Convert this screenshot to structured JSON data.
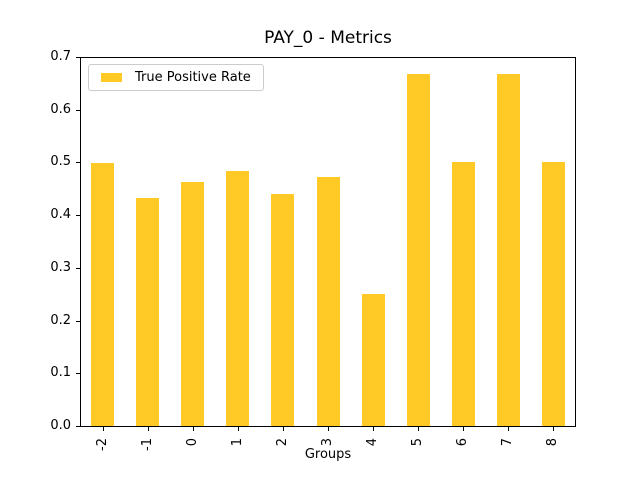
{
  "chart_data": {
    "type": "bar",
    "title": "PAY_0 - Metrics",
    "xlabel": "Groups",
    "ylabel": "",
    "categories": [
      "-2",
      "-1",
      "0",
      "1",
      "2",
      "3",
      "4",
      "5",
      "6",
      "7",
      "8"
    ],
    "series": [
      {
        "name": "True Positive Rate",
        "values": [
          0.498,
          0.432,
          0.463,
          0.483,
          0.441,
          0.473,
          0.25,
          0.667,
          0.5,
          0.667,
          0.5
        ]
      }
    ],
    "ylim": [
      0.0,
      0.7
    ],
    "yticks": [
      "0.0",
      "0.1",
      "0.2",
      "0.3",
      "0.4",
      "0.5",
      "0.6",
      "0.7"
    ],
    "legend_position": "upper left",
    "grid": false,
    "colors": {
      "bar": "#FFC926",
      "axis": "#000000",
      "legend_border": "#cccccc",
      "background": "#ffffff"
    }
  }
}
